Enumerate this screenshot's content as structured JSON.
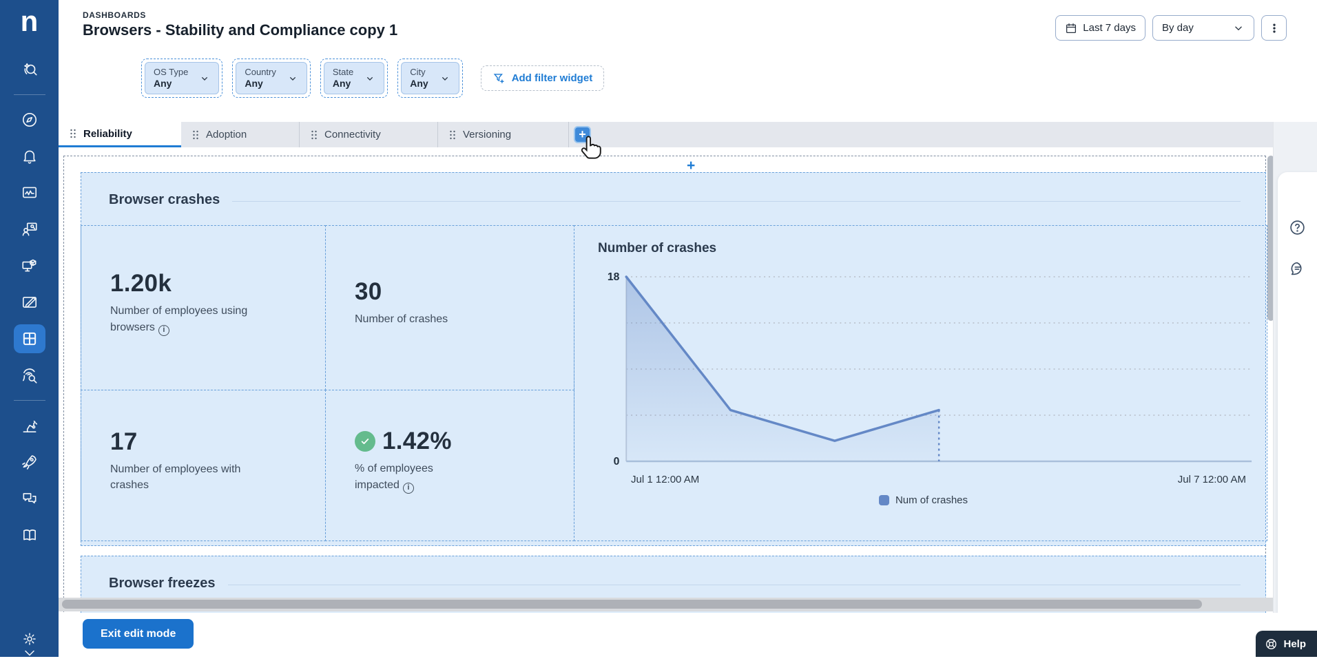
{
  "app": {
    "logo_letter": "n"
  },
  "header": {
    "eyebrow": "DASHBOARDS",
    "title": "Browsers - Stability and Compliance copy 1",
    "time_range": "Last 7 days",
    "granularity": "By day"
  },
  "filters": {
    "widgets": [
      {
        "label": "OS Type",
        "value": "Any"
      },
      {
        "label": "Country",
        "value": "Any"
      },
      {
        "label": "State",
        "value": "Any"
      },
      {
        "label": "City",
        "value": "Any"
      }
    ],
    "add_label": "Add filter widget"
  },
  "tabs": [
    {
      "label": "Reliability",
      "active": true
    },
    {
      "label": "Adoption",
      "active": false
    },
    {
      "label": "Connectivity",
      "active": false
    },
    {
      "label": "Versioning",
      "active": false
    }
  ],
  "add_tab_glyph": "+",
  "add_section_glyph": "+",
  "sections": {
    "crashes": {
      "title": "Browser crashes",
      "metrics": [
        {
          "value": "1.20k",
          "label": "Number of employees using browsers",
          "info": true
        },
        {
          "value": "30",
          "label": "Number of crashes",
          "info": false
        },
        {
          "value": "17",
          "label": "Number of employees with crashes",
          "info": false
        },
        {
          "value": "1.42%",
          "label": "% of employees impacted",
          "info": true,
          "status": "good",
          "status_color": "#64bb8d"
        }
      ]
    },
    "freezes": {
      "title": "Browser freezes"
    }
  },
  "chart_data": {
    "type": "area-line",
    "title": "Number of crashes",
    "x": [
      "Jul 1",
      "Jul 2",
      "Jul 3",
      "Jul 4"
    ],
    "values": [
      18,
      5,
      2,
      5
    ],
    "x_axis_span_days": 6,
    "x_axis_start_label": "Jul 1 12:00 AM",
    "x_axis_end_label": "Jul 7 12:00 AM",
    "ylim": [
      0,
      18
    ],
    "yticks_shown": [
      18,
      0
    ],
    "gridline_step": 4.5,
    "grid": "dotted-horizontal",
    "legend": [
      "Num of crashes"
    ],
    "legend_position": "bottom-center",
    "series_color": "#6488c6",
    "last_point_dotted_drop": true
  },
  "sidebar_icons": [
    "ai-search",
    "explore-compass",
    "alerts-bell",
    "monitors-pulse",
    "training-presenter",
    "devices-cube",
    "surveys-card",
    "dashboards-grid",
    "investigations-fingerprint",
    "automation-robot-arm",
    "launch-rocket",
    "engage-chat",
    "library-book",
    "settings-gear"
  ],
  "footer": {
    "exit_label": "Exit edit mode"
  },
  "help": {
    "label": "Help"
  },
  "info_glyph": "i",
  "colors": {
    "accent": "#1b72cc",
    "sidebar": "#1d4f8c",
    "section_bg": "#dcebfa",
    "status_green": "#64bb8d"
  }
}
